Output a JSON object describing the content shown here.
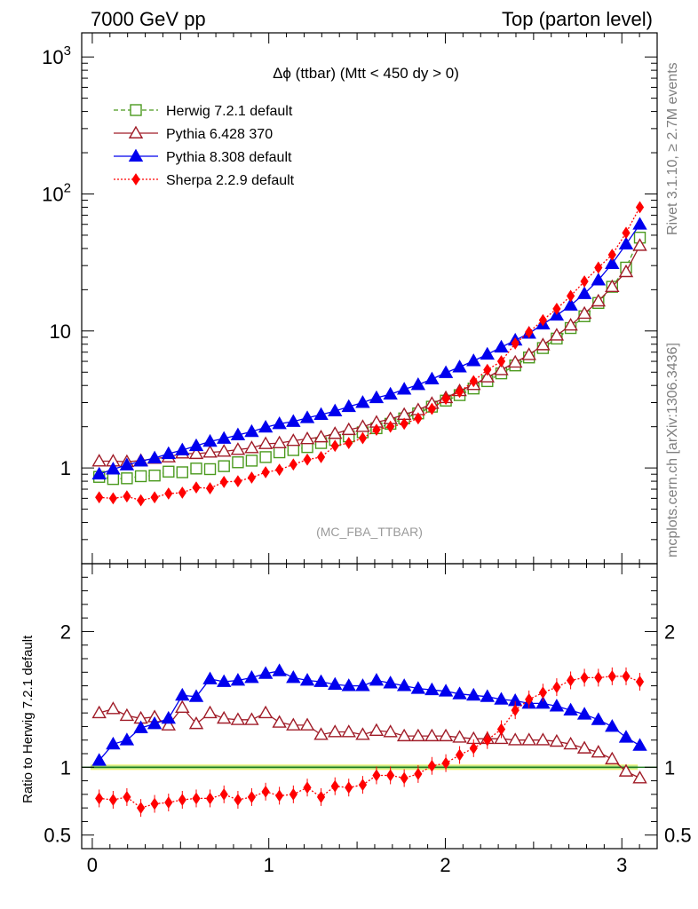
{
  "header": {
    "left": "7000 GeV pp",
    "right": "Top (parton level)"
  },
  "side_labels": {
    "rivet": "Rivet 3.1.10, ≥ 2.7M events",
    "mcplots": "mcplots.cern.ch [arXiv:1306.3436]"
  },
  "chart_data": [
    {
      "type": "line",
      "title": "Δϕ (ttbar) (Mtt < 450 dy > 0)",
      "annotation": "(MC_FBA_TTBAR)",
      "xlabel": "",
      "ylabel": "",
      "xlim": [
        -0.06,
        3.2
      ],
      "ylim": [
        0.2,
        1500
      ],
      "yscale": "log",
      "legend_position": "top-left",
      "x_ticks": [
        "0",
        "1",
        "2",
        "3"
      ],
      "y_ticks": [
        "1",
        "10",
        "10^2",
        "10^3"
      ],
      "x": [
        0.039,
        0.118,
        0.196,
        0.275,
        0.353,
        0.432,
        0.51,
        0.589,
        0.667,
        0.746,
        0.825,
        0.903,
        0.982,
        1.06,
        1.139,
        1.218,
        1.296,
        1.375,
        1.453,
        1.532,
        1.61,
        1.689,
        1.767,
        1.846,
        1.924,
        2.003,
        2.081,
        2.16,
        2.238,
        2.317,
        2.396,
        2.474,
        2.553,
        2.631,
        2.71,
        2.788,
        2.867,
        2.945,
        3.024,
        3.102
      ],
      "series": [
        {
          "name": "Herwig 7.2.1 default",
          "color": "#4b9a1e",
          "marker": "open-square",
          "line": "dashed",
          "values": [
            0.86,
            0.83,
            0.84,
            0.87,
            0.88,
            0.94,
            0.93,
            0.99,
            0.98,
            1.03,
            1.1,
            1.13,
            1.2,
            1.3,
            1.35,
            1.42,
            1.52,
            1.6,
            1.7,
            1.82,
            1.95,
            2.1,
            2.3,
            2.5,
            2.8,
            3.1,
            3.4,
            3.8,
            4.3,
            4.9,
            5.6,
            6.4,
            7.5,
            8.8,
            10.5,
            12.8,
            16.0,
            21.0,
            29.0,
            48.0
          ]
        },
        {
          "name": "Pythia 6.428 370",
          "color": "#a01c28",
          "marker": "open-triangle",
          "line": "solid",
          "values": [
            1.12,
            1.12,
            1.11,
            1.13,
            1.17,
            1.2,
            1.28,
            1.27,
            1.3,
            1.32,
            1.36,
            1.4,
            1.5,
            1.52,
            1.58,
            1.63,
            1.68,
            1.78,
            1.9,
            2.0,
            2.15,
            2.28,
            2.45,
            2.65,
            2.95,
            3.25,
            3.65,
            4.05,
            4.6,
            5.2,
            5.9,
            6.7,
            7.9,
            9.3,
            11.0,
            13.4,
            16.5,
            21.0,
            27.0,
            42.0
          ]
        },
        {
          "name": "Pythia 8.308 default",
          "color": "#0000ee",
          "marker": "filled-triangle",
          "line": "solid",
          "values": [
            0.9,
            0.98,
            1.05,
            1.12,
            1.18,
            1.27,
            1.35,
            1.45,
            1.56,
            1.64,
            1.74,
            1.84,
            1.98,
            2.1,
            2.18,
            2.32,
            2.45,
            2.6,
            2.8,
            3.0,
            3.25,
            3.45,
            3.75,
            4.05,
            4.45,
            4.95,
            5.45,
            6.05,
            6.75,
            7.6,
            8.55,
            9.6,
            11.2,
            13.0,
            15.4,
            18.7,
            23.5,
            31.0,
            43.0,
            60.0
          ]
        },
        {
          "name": "Sherpa 2.2.9 default",
          "color": "#ff0000",
          "marker": "filled-diamond",
          "line": "dotted",
          "values": [
            0.61,
            0.6,
            0.62,
            0.58,
            0.61,
            0.65,
            0.66,
            0.72,
            0.71,
            0.79,
            0.8,
            0.85,
            0.93,
            0.97,
            1.06,
            1.15,
            1.2,
            1.45,
            1.52,
            1.65,
            1.9,
            2.0,
            2.1,
            2.3,
            2.7,
            3.2,
            3.6,
            4.3,
            5.2,
            6.0,
            8.1,
            9.8,
            12.0,
            14.5,
            18.0,
            23.0,
            29.0,
            36.0,
            52.0,
            80.0
          ]
        }
      ]
    },
    {
      "type": "line",
      "ylabel": "Ratio to Herwig 7.2.1 default",
      "xlabel": "",
      "xlim": [
        -0.06,
        3.2
      ],
      "ylim": [
        0.4,
        2.5
      ],
      "x_ticks": [
        "0",
        "1",
        "2",
        "3"
      ],
      "y_ticks": [
        "0.5",
        "1",
        "2"
      ],
      "reference_band": "Herwig 7.2.1 default uncertainty (green/yellow)",
      "reference_line": 1,
      "x": [
        0.039,
        0.118,
        0.196,
        0.275,
        0.353,
        0.432,
        0.51,
        0.589,
        0.667,
        0.746,
        0.825,
        0.903,
        0.982,
        1.06,
        1.139,
        1.218,
        1.296,
        1.375,
        1.453,
        1.532,
        1.61,
        1.689,
        1.767,
        1.846,
        1.924,
        2.003,
        2.081,
        2.16,
        2.238,
        2.317,
        2.396,
        2.474,
        2.553,
        2.631,
        2.71,
        2.788,
        2.867,
        2.945,
        3.024,
        3.102
      ],
      "series": [
        {
          "name": "Pythia 6.428 370",
          "color": "#a01c28",
          "marker": "open-triangle",
          "values": [
            1.4,
            1.43,
            1.38,
            1.36,
            1.37,
            1.31,
            1.44,
            1.32,
            1.4,
            1.36,
            1.35,
            1.35,
            1.4,
            1.33,
            1.31,
            1.31,
            1.24,
            1.26,
            1.26,
            1.24,
            1.27,
            1.26,
            1.23,
            1.23,
            1.23,
            1.23,
            1.22,
            1.21,
            1.21,
            1.21,
            1.2,
            1.2,
            1.2,
            1.19,
            1.17,
            1.14,
            1.11,
            1.06,
            0.97,
            0.92
          ]
        },
        {
          "name": "Pythia 8.308 default",
          "color": "#0000ee",
          "marker": "filled-triangle",
          "values": [
            1.05,
            1.17,
            1.2,
            1.29,
            1.32,
            1.36,
            1.53,
            1.52,
            1.65,
            1.63,
            1.64,
            1.66,
            1.69,
            1.71,
            1.66,
            1.64,
            1.63,
            1.61,
            1.6,
            1.6,
            1.64,
            1.62,
            1.6,
            1.58,
            1.57,
            1.56,
            1.54,
            1.53,
            1.52,
            1.5,
            1.49,
            1.47,
            1.47,
            1.45,
            1.42,
            1.39,
            1.35,
            1.3,
            1.22,
            1.16
          ]
        },
        {
          "name": "Sherpa 2.2.9 default",
          "color": "#ff0000",
          "marker": "filled-diamond",
          "values": [
            0.77,
            0.76,
            0.78,
            0.7,
            0.73,
            0.74,
            0.76,
            0.77,
            0.77,
            0.8,
            0.76,
            0.78,
            0.82,
            0.79,
            0.8,
            0.85,
            0.78,
            0.86,
            0.85,
            0.87,
            0.94,
            0.94,
            0.92,
            0.95,
            1.01,
            1.03,
            1.09,
            1.14,
            1.2,
            1.28,
            1.42,
            1.5,
            1.55,
            1.59,
            1.64,
            1.66,
            1.66,
            1.67,
            1.67,
            1.63
          ]
        }
      ]
    }
  ]
}
